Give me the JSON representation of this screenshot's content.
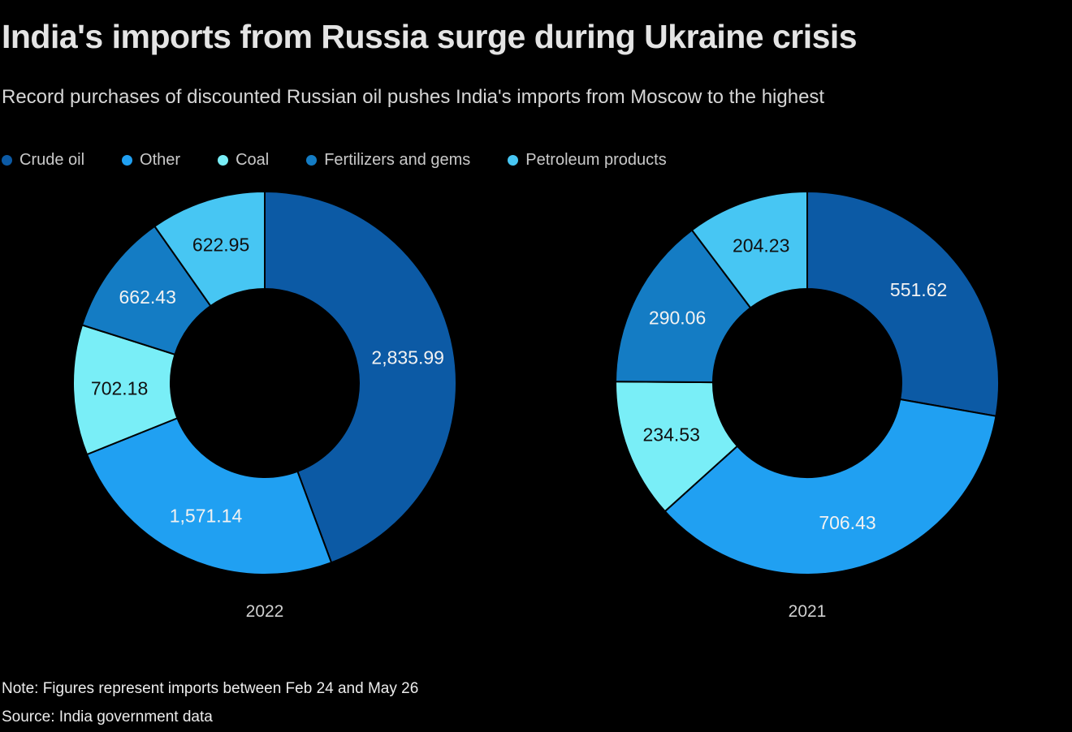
{
  "header": {
    "title": "India's imports from Russia surge during Ukraine crisis",
    "subtitle": "Record purchases of discounted Russian oil pushes India's imports from Moscow to the highest"
  },
  "legend": {
    "items": [
      {
        "label": "Crude oil",
        "color": "#0c5aa5"
      },
      {
        "label": "Other",
        "color": "#20a0f2"
      },
      {
        "label": "Coal",
        "color": "#79eef7"
      },
      {
        "label": "Fertilizers and gems",
        "color": "#147cc4"
      },
      {
        "label": "Petroleum products",
        "color": "#47c6f3"
      }
    ]
  },
  "chart_data": {
    "type": "pie",
    "variant": "donut",
    "direction": "clockwise",
    "start_angle_deg": 0,
    "inner_radius_ratio": 0.49,
    "legend_position": "top",
    "categories": [
      "Crude oil",
      "Other",
      "Coal",
      "Fertilizers and gems",
      "Petroleum products"
    ],
    "colors": [
      "#0c5aa5",
      "#20a0f2",
      "#79eef7",
      "#147cc4",
      "#47c6f3"
    ],
    "value_label_colors": [
      "#f2f2f2",
      "#f2f2f2",
      "#101010",
      "#f2f2f2",
      "#101010"
    ],
    "charts": [
      {
        "title": "2022",
        "values": [
          2835.99,
          1571.14,
          702.18,
          662.43,
          622.95
        ],
        "labels": [
          "2,835.99",
          "1,571.14",
          "702.18",
          "662.43",
          "622.95"
        ]
      },
      {
        "title": "2021",
        "values": [
          551.62,
          706.43,
          234.53,
          290.06,
          204.23
        ],
        "labels": [
          "551.62",
          "706.43",
          "234.53",
          "290.06",
          "204.23"
        ]
      }
    ]
  },
  "footer": {
    "note": "Note: Figures represent imports between Feb 24 and May 26",
    "source": "Source: India government data"
  }
}
